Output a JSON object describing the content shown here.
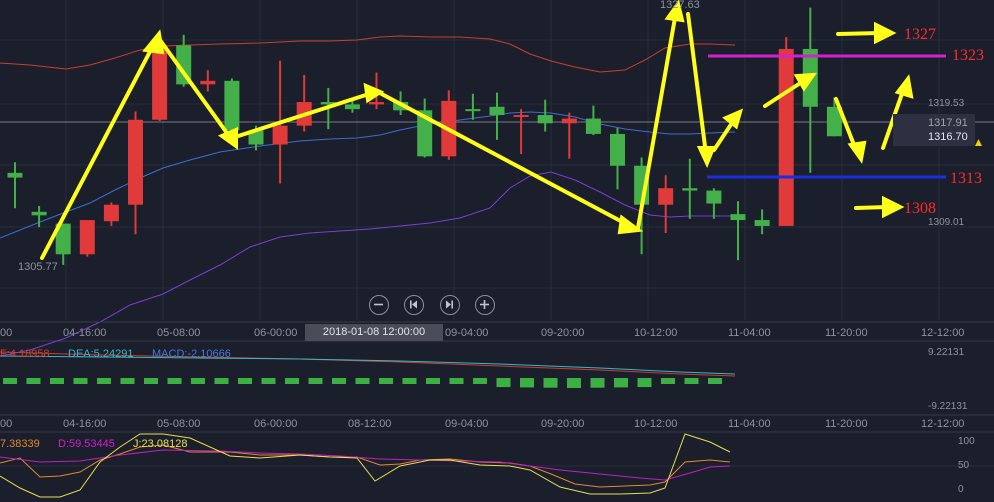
{
  "cursor_time": "2018-01-08 12:00:00",
  "time_axis_main": [
    "04-16:00",
    "05-08:00",
    "06-00:00",
    "08-12:00",
    "09-04:00",
    "09-20:00",
    "10-12:00",
    "11-04:00",
    "11-20:00",
    "12-12:00"
  ],
  "time_axis_sub": [
    "04-16:00",
    "05-08:00",
    "06-00:00",
    "08-12:00",
    "09-04:00",
    "09-20:00",
    "10-12:00",
    "11-04:00",
    "11-20:00",
    "12-12:00"
  ],
  "edge_time_main": "00",
  "edge_time_sub": "00",
  "price_labels": {
    "low": "1305.77",
    "high": "1327.63",
    "level_1319": "1319.53",
    "level_1317": "1317.91",
    "current": "1316.70",
    "level_1309": "1309.01"
  },
  "annotations": {
    "a1327": "1327",
    "a1323": "1323",
    "a1313": "1313",
    "a1308": "1308"
  },
  "macd": {
    "dif_label": "F:4.18958",
    "dea_label": "DEA:5.24291",
    "macd_label": "MACD:-2.10666",
    "top": "9.22131",
    "bottom": "-9.22131"
  },
  "kdj": {
    "k_label": "7.38339",
    "d_label": "D:59.53445",
    "j_label": "J:23.08128",
    "ticks": [
      "100",
      "50",
      "0"
    ]
  },
  "colors": {
    "up": "#e03a3a",
    "down": "#44b04a",
    "ma": "#3a6fd0",
    "upper": "#c8402e",
    "lower": "#7a3fd0",
    "arrow": "#ffff1a"
  },
  "candles": [
    {
      "t": "04-04:00",
      "o": 1313.6,
      "h": 1314.5,
      "l": 1310.6,
      "c": 1313.2
    },
    {
      "t": "04-08:00",
      "o": 1310.3,
      "h": 1310.8,
      "l": 1309.0,
      "c": 1310.0
    },
    {
      "t": "04-12:00",
      "o": 1309.3,
      "h": 1309.3,
      "l": 1305.8,
      "c": 1306.7
    },
    {
      "t": "04-16:00",
      "o": 1306.7,
      "h": 1309.5,
      "l": 1306.5,
      "c": 1309.6
    },
    {
      "t": "04-20:00",
      "o": 1309.5,
      "h": 1311.1,
      "l": 1309.1,
      "c": 1310.9
    },
    {
      "t": "05-00:00",
      "o": 1310.9,
      "h": 1318.8,
      "l": 1308.4,
      "c": 1318.1
    },
    {
      "t": "05-04:00",
      "o": 1318.1,
      "h": 1324.4,
      "l": 1318.0,
      "c": 1324.4
    },
    {
      "t": "05-08:00",
      "o": 1324.4,
      "h": 1325.3,
      "l": 1320.9,
      "c": 1321.1
    },
    {
      "t": "05-12:00",
      "o": 1321.1,
      "h": 1322.3,
      "l": 1320.5,
      "c": 1321.4
    },
    {
      "t": "05-16:00",
      "o": 1321.4,
      "h": 1321.6,
      "l": 1316.9,
      "c": 1317.2
    },
    {
      "t": "05-20:00",
      "o": 1317.2,
      "h": 1317.6,
      "l": 1315.5,
      "c": 1316.0
    },
    {
      "t": "06-00:00",
      "o": 1316.0,
      "h": 1323.1,
      "l": 1312.7,
      "c": 1317.6
    },
    {
      "t": "06-04:00",
      "o": 1317.6,
      "h": 1321.9,
      "l": 1317.1,
      "c": 1319.6
    },
    {
      "t": "06-08:00",
      "o": 1319.6,
      "h": 1320.8,
      "l": 1317.3,
      "c": 1319.4
    },
    {
      "t": "06-12:00",
      "o": 1319.4,
      "h": 1319.8,
      "l": 1318.7,
      "c": 1319.0
    },
    {
      "t": "06-16:00",
      "o": 1319.4,
      "h": 1322.1,
      "l": 1319.0,
      "c": 1319.6
    },
    {
      "t": "06-20:00",
      "o": 1319.6,
      "h": 1320.5,
      "l": 1318.5,
      "c": 1318.9
    },
    {
      "t": "08-12:00",
      "o": 1318.9,
      "h": 1319.9,
      "l": 1314.9,
      "c": 1315.0
    },
    {
      "t": "08-16:00",
      "o": 1315.0,
      "h": 1320.6,
      "l": 1314.7,
      "c": 1319.7
    },
    {
      "t": "08-20:00",
      "o": 1319.0,
      "h": 1320.3,
      "l": 1318.1,
      "c": 1318.9
    },
    {
      "t": "09-00:00",
      "o": 1319.2,
      "h": 1320.4,
      "l": 1316.4,
      "c": 1318.5
    },
    {
      "t": "09-04:00",
      "o": 1318.5,
      "h": 1319.0,
      "l": 1315.2,
      "c": 1318.5
    },
    {
      "t": "09-08:00",
      "o": 1318.5,
      "h": 1319.8,
      "l": 1317.1,
      "c": 1317.8
    },
    {
      "t": "09-12:00",
      "o": 1317.8,
      "h": 1318.7,
      "l": 1314.8,
      "c": 1318.2
    },
    {
      "t": "09-16:00",
      "o": 1318.2,
      "h": 1319.3,
      "l": 1316.8,
      "c": 1316.9
    },
    {
      "t": "09-20:00",
      "o": 1316.9,
      "h": 1317.4,
      "l": 1312.2,
      "c": 1314.2
    },
    {
      "t": "10-00:00",
      "o": 1314.2,
      "h": 1314.9,
      "l": 1306.7,
      "c": 1310.9
    },
    {
      "t": "10-04:00",
      "o": 1310.9,
      "h": 1313.4,
      "l": 1308.5,
      "c": 1312.3
    },
    {
      "t": "10-08:00",
      "o": 1312.3,
      "h": 1314.8,
      "l": 1309.7,
      "c": 1312.1
    },
    {
      "t": "10-12:00",
      "o": 1312.1,
      "h": 1312.3,
      "l": 1309.7,
      "c": 1311.0
    },
    {
      "t": "10-16:00",
      "o": 1310.1,
      "h": 1311.2,
      "l": 1306.2,
      "c": 1309.6
    },
    {
      "t": "10-20:00",
      "o": 1309.6,
      "h": 1310.5,
      "l": 1308.4,
      "c": 1309.1
    },
    {
      "t": "11-00:00",
      "o": 1309.1,
      "h": 1325.1,
      "l": 1309.1,
      "c": 1324.1
    },
    {
      "t": "11-04:00",
      "o": 1324.1,
      "h": 1327.6,
      "l": 1313.6,
      "c": 1319.2
    },
    {
      "t": "11-08:00",
      "o": 1319.2,
      "h": 1320.0,
      "l": 1316.7,
      "c": 1316.7
    }
  ]
}
